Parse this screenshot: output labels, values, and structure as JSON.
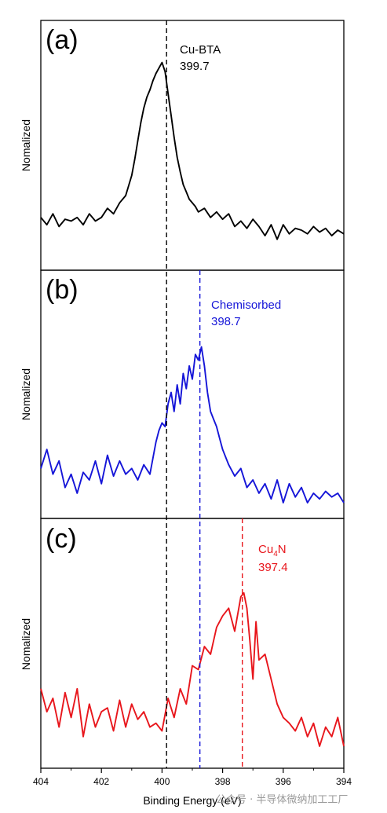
{
  "chart_data": [
    {
      "type": "line",
      "panel_label": "(a)",
      "ylabel": "Nomalized",
      "xlim": [
        404,
        394
      ],
      "ylim": [
        0,
        1
      ],
      "color": "#000000",
      "annotation": {
        "line1": "Cu-BTA",
        "line2": "399.7"
      },
      "reference_line_x": 399.85,
      "x": [
        404.0,
        403.8,
        403.6,
        403.4,
        403.2,
        403.0,
        402.8,
        402.6,
        402.4,
        402.2,
        402.0,
        401.8,
        401.6,
        401.4,
        401.2,
        401.0,
        400.9,
        400.8,
        400.7,
        400.6,
        400.5,
        400.4,
        400.3,
        400.2,
        400.1,
        400.0,
        399.9,
        399.8,
        399.7,
        399.6,
        399.5,
        399.4,
        399.3,
        399.2,
        399.1,
        399.0,
        398.9,
        398.8,
        398.6,
        398.4,
        398.2,
        398.0,
        397.8,
        397.6,
        397.4,
        397.2,
        397.0,
        396.8,
        396.6,
        396.4,
        396.2,
        396.0,
        395.8,
        395.6,
        395.4,
        395.2,
        395.0,
        394.8,
        394.6,
        394.4,
        394.2,
        394.0
      ],
      "values": [
        0.1,
        0.06,
        0.12,
        0.05,
        0.09,
        0.08,
        0.1,
        0.06,
        0.12,
        0.08,
        0.1,
        0.15,
        0.12,
        0.18,
        0.22,
        0.33,
        0.42,
        0.52,
        0.62,
        0.7,
        0.76,
        0.8,
        0.85,
        0.89,
        0.92,
        0.95,
        0.9,
        0.78,
        0.66,
        0.54,
        0.43,
        0.35,
        0.28,
        0.24,
        0.2,
        0.18,
        0.16,
        0.13,
        0.15,
        0.1,
        0.13,
        0.09,
        0.12,
        0.05,
        0.08,
        0.04,
        0.09,
        0.05,
        0.0,
        0.06,
        -0.02,
        0.06,
        0.01,
        0.04,
        0.03,
        0.01,
        0.05,
        0.02,
        0.04,
        0.0,
        0.03,
        0.01
      ]
    },
    {
      "type": "line",
      "panel_label": "(b)",
      "ylabel": "Nomalized",
      "xlim": [
        404,
        394
      ],
      "ylim": [
        0,
        1
      ],
      "color": "#1515d8",
      "annotation": {
        "line1": "Chemisorbed",
        "line2": "398.7"
      },
      "reference_line_x": 398.75,
      "x": [
        404.0,
        403.8,
        403.6,
        403.4,
        403.2,
        403.0,
        402.8,
        402.6,
        402.4,
        402.2,
        402.0,
        401.8,
        401.6,
        401.4,
        401.2,
        401.0,
        400.8,
        400.6,
        400.4,
        400.2,
        400.1,
        400.0,
        399.9,
        399.8,
        399.7,
        399.6,
        399.5,
        399.4,
        399.3,
        399.2,
        399.1,
        399.0,
        398.9,
        398.8,
        398.7,
        398.6,
        398.5,
        398.4,
        398.3,
        398.2,
        398.1,
        398.0,
        397.8,
        397.6,
        397.4,
        397.2,
        397.0,
        396.8,
        396.6,
        396.4,
        396.2,
        396.0,
        395.8,
        395.6,
        395.4,
        395.2,
        395.0,
        394.8,
        394.6,
        394.4,
        394.2,
        394.0
      ],
      "values": [
        0.18,
        0.28,
        0.15,
        0.22,
        0.08,
        0.15,
        0.05,
        0.16,
        0.12,
        0.22,
        0.1,
        0.25,
        0.14,
        0.22,
        0.15,
        0.18,
        0.12,
        0.2,
        0.15,
        0.32,
        0.38,
        0.42,
        0.4,
        0.52,
        0.58,
        0.48,
        0.62,
        0.52,
        0.68,
        0.6,
        0.72,
        0.65,
        0.78,
        0.75,
        0.82,
        0.72,
        0.58,
        0.48,
        0.44,
        0.4,
        0.34,
        0.28,
        0.2,
        0.14,
        0.18,
        0.08,
        0.12,
        0.05,
        0.1,
        0.02,
        0.12,
        0.0,
        0.1,
        0.03,
        0.08,
        0.0,
        0.05,
        0.02,
        0.06,
        0.03,
        0.05,
        0.0
      ]
    },
    {
      "type": "line",
      "panel_label": "(c)",
      "ylabel": "Nomalized",
      "xlabel": "Binding Energy (eV)",
      "xlim": [
        404,
        394
      ],
      "ylim": [
        0,
        1
      ],
      "color": "#e8161c",
      "annotation": {
        "line1": "Cu",
        "subscript": "4",
        "line1_tail": "N",
        "line2": "397.4"
      },
      "reference_line_x": 397.35,
      "x_ticks": [
        404,
        402,
        400,
        398,
        396,
        394
      ],
      "x_tick_labels": [
        "404",
        "402",
        "400",
        "398",
        "396",
        "394"
      ],
      "x": [
        404.0,
        403.8,
        403.6,
        403.4,
        403.2,
        403.0,
        402.8,
        402.6,
        402.4,
        402.2,
        402.0,
        401.8,
        401.6,
        401.4,
        401.2,
        401.0,
        400.8,
        400.6,
        400.4,
        400.2,
        400.0,
        399.8,
        399.6,
        399.4,
        399.2,
        399.0,
        398.8,
        398.6,
        398.4,
        398.2,
        398.0,
        397.8,
        397.6,
        397.4,
        397.3,
        397.2,
        397.1,
        397.0,
        396.9,
        396.8,
        396.6,
        396.4,
        396.2,
        396.0,
        395.8,
        395.6,
        395.4,
        395.2,
        395.0,
        394.8,
        394.6,
        394.4,
        394.2,
        394.0
      ],
      "values": [
        0.3,
        0.18,
        0.25,
        0.1,
        0.28,
        0.15,
        0.3,
        0.05,
        0.22,
        0.1,
        0.18,
        0.2,
        0.08,
        0.24,
        0.1,
        0.22,
        0.14,
        0.18,
        0.1,
        0.12,
        0.08,
        0.25,
        0.15,
        0.3,
        0.22,
        0.42,
        0.4,
        0.52,
        0.48,
        0.62,
        0.68,
        0.72,
        0.6,
        0.78,
        0.8,
        0.72,
        0.55,
        0.35,
        0.65,
        0.45,
        0.48,
        0.35,
        0.22,
        0.15,
        0.12,
        0.08,
        0.15,
        0.05,
        0.12,
        0.0,
        0.1,
        0.05,
        0.15,
        0.0
      ]
    }
  ],
  "watermark": "公众号 · 半导体微纳加工工厂"
}
